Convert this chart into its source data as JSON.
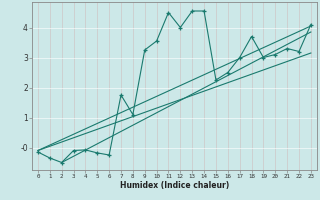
{
  "title": "",
  "xlabel": "Humidex (Indice chaleur)",
  "bg_color": "#cce8e8",
  "grid_color": "#b0d8d8",
  "line_color": "#1a7a6e",
  "x_data": [
    0,
    1,
    2,
    3,
    4,
    5,
    6,
    7,
    8,
    9,
    10,
    11,
    12,
    13,
    14,
    15,
    16,
    17,
    18,
    19,
    20,
    21,
    22,
    23
  ],
  "y_data": [
    -0.15,
    -0.35,
    -0.5,
    -0.1,
    -0.08,
    -0.18,
    -0.25,
    1.75,
    1.1,
    3.25,
    3.55,
    4.5,
    4.0,
    4.55,
    4.55,
    2.25,
    2.5,
    3.0,
    3.7,
    3.0,
    3.1,
    3.3,
    3.2,
    4.1
  ],
  "line1_x": [
    0,
    23
  ],
  "line1_y": [
    -0.1,
    3.15
  ],
  "line2_x": [
    0,
    23
  ],
  "line2_y": [
    -0.1,
    4.05
  ],
  "line3_x": [
    2,
    23
  ],
  "line3_y": [
    -0.5,
    3.85
  ],
  "xlim": [
    -0.5,
    23.5
  ],
  "ylim": [
    -0.75,
    4.85
  ],
  "xticks": [
    0,
    1,
    2,
    3,
    4,
    5,
    6,
    7,
    8,
    9,
    10,
    11,
    12,
    13,
    14,
    15,
    16,
    17,
    18,
    19,
    20,
    21,
    22,
    23
  ],
  "yticks": [
    0,
    1,
    2,
    3,
    4
  ],
  "ytick_labels": [
    "-0",
    "1",
    "2",
    "3",
    "4"
  ]
}
